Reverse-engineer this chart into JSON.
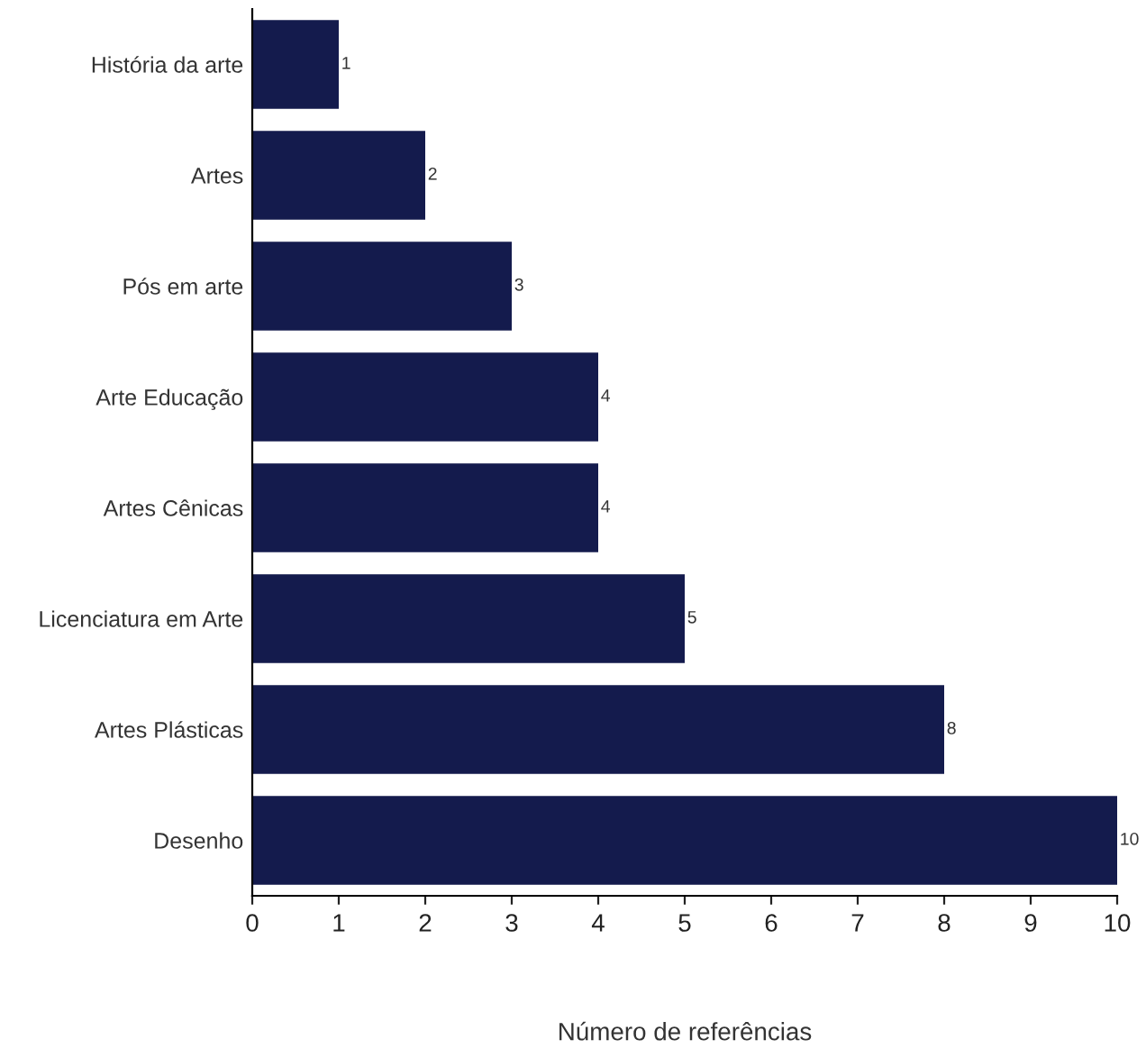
{
  "chart_data": {
    "type": "bar",
    "orientation": "horizontal",
    "xlabel": "Número de referências",
    "categories": [
      "História da arte",
      "Artes",
      "Pós em arte",
      "Arte Educação",
      "Artes Cênicas",
      "Licenciatura em Arte",
      "Artes Plásticas",
      "Desenho"
    ],
    "values": [
      1,
      2,
      3,
      4,
      4,
      5,
      8,
      10
    ],
    "color": "#141b4d",
    "xlim": [
      0,
      10
    ],
    "xticks": [
      0,
      1,
      2,
      3,
      4,
      5,
      6,
      7,
      8,
      9,
      10
    ],
    "grid": false,
    "data_labels": true
  }
}
